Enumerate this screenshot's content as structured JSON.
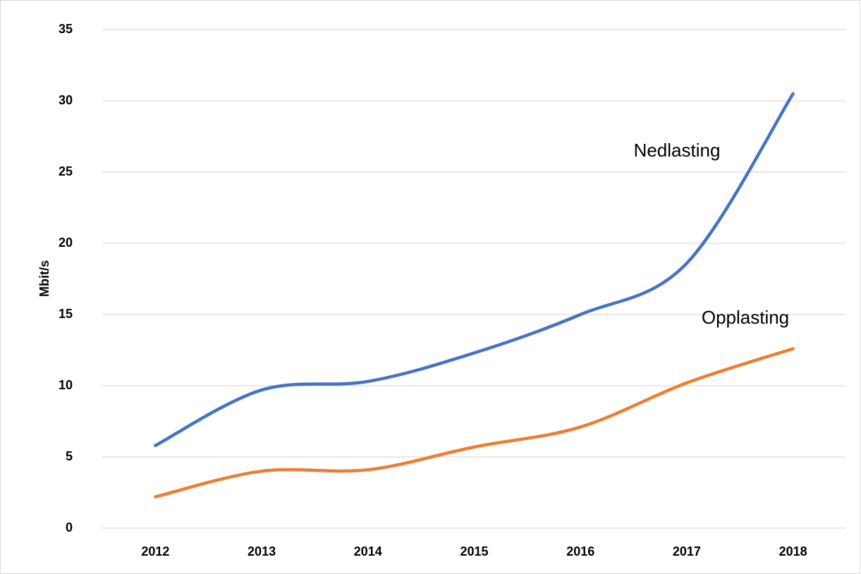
{
  "chart_data": {
    "type": "line",
    "y_label": "Mbit/s",
    "categories": [
      "2012",
      "2013",
      "2014",
      "2015",
      "2016",
      "2017",
      "2018"
    ],
    "series": [
      {
        "name": "Nedlasting",
        "color": "#4472c4",
        "values": [
          5.8,
          9.7,
          10.3,
          12.3,
          15.0,
          18.6,
          30.5
        ]
      },
      {
        "name": "Opplasting",
        "color": "#ed7d31",
        "values": [
          2.2,
          4.0,
          4.1,
          5.7,
          7.1,
          10.2,
          12.6
        ]
      }
    ],
    "ylim": [
      0,
      35
    ],
    "yticks": [
      0,
      5,
      10,
      15,
      20,
      25,
      30,
      35
    ],
    "grid": true,
    "smooth": true
  }
}
